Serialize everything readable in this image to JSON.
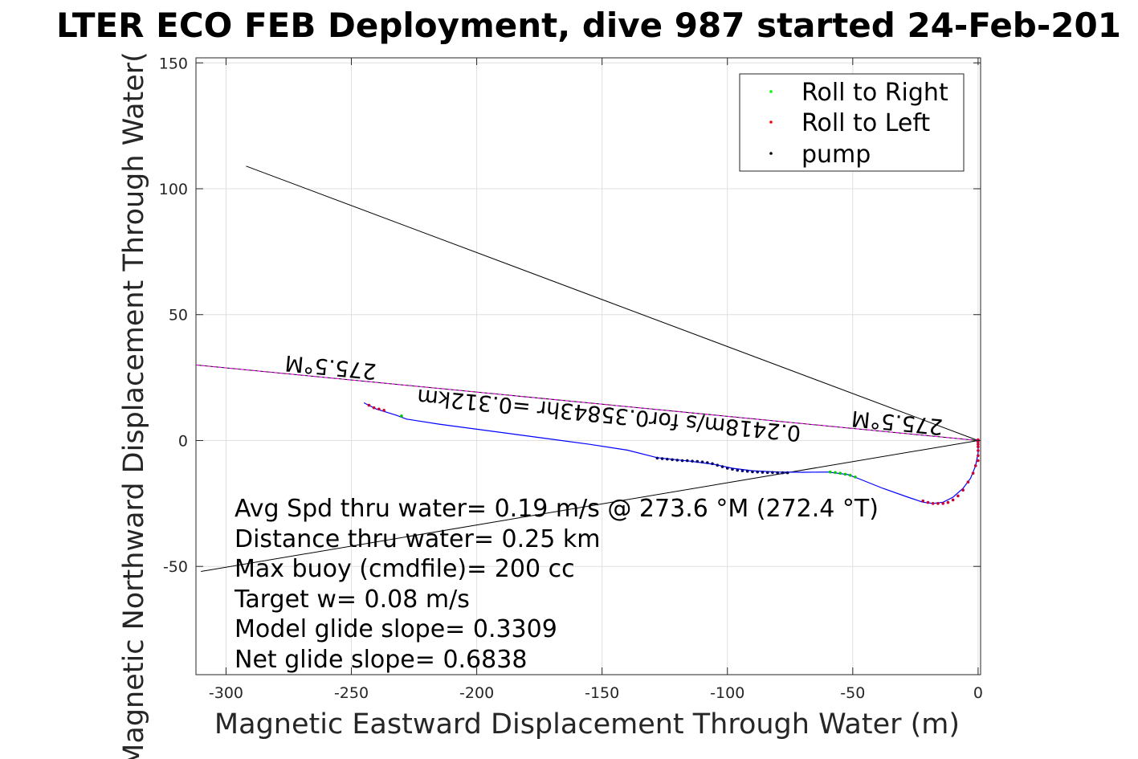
{
  "chart_data": {
    "type": "line",
    "title": "LTER ECO FEB Deployment, dive 987 started 24-Feb-201",
    "xlabel": "Magnetic Eastward Displacement Through Water (m)",
    "ylabel": "Magnetic Northward Displacement Through Water(",
    "xlim": [
      -312,
      1
    ],
    "ylim": [
      -93,
      152
    ],
    "xticks": [
      -300,
      -250,
      -200,
      -150,
      -100,
      -50,
      0
    ],
    "yticks": [
      -50,
      0,
      50,
      100,
      150
    ],
    "xtick_labels": [
      "-300",
      "-250",
      "-200",
      "-150",
      "-100",
      "-50",
      "0"
    ],
    "ytick_labels": [
      "-50",
      "0",
      "50",
      "100",
      "150"
    ],
    "grid": true,
    "legend_position": "top-right",
    "legend": [
      {
        "label": "Roll to Right",
        "color": "#00ff00"
      },
      {
        "label": "Roll to Left",
        "color": "#ff0000"
      },
      {
        "label": "pump",
        "color": "#000000"
      }
    ],
    "series": {
      "track": {
        "color": "#0000ff",
        "x": [
          -245,
          -240,
          -232,
          -228,
          -215,
          -200,
          -185,
          -170,
          -155,
          -140,
          -128,
          -115,
          -105,
          -98,
          -90,
          -80,
          -70,
          -60,
          -52,
          -48,
          -38,
          -28,
          -22,
          -18,
          -14,
          -10,
          -6,
          -3,
          -1,
          0,
          0,
          -0.5
        ],
        "y": [
          15,
          12.5,
          10,
          8.5,
          6.5,
          4.5,
          2.5,
          0.5,
          -1.5,
          -3.8,
          -6.8,
          -8.2,
          -9.5,
          -11,
          -12,
          -12.5,
          -12.6,
          -12.5,
          -13.5,
          -15,
          -19,
          -22.5,
          -24.5,
          -25,
          -24.5,
          -22.5,
          -19,
          -15,
          -10,
          -5,
          -2,
          0
        ]
      },
      "roll_to_right": {
        "color": "#00cc00",
        "x": [
          -230,
          -59,
          -57,
          -55,
          -53,
          -51,
          -49
        ],
        "y": [
          9.8,
          -12.5,
          -12.7,
          -13,
          -13.4,
          -13.8,
          -14.5
        ]
      },
      "roll_to_left": {
        "color": "#cc0033",
        "x": [
          -243,
          -241,
          -239,
          -237,
          -22,
          -20,
          -18,
          -16,
          -14,
          -12,
          -10,
          -8,
          -6,
          -4,
          -2,
          -1,
          0,
          0,
          0,
          0,
          0,
          0,
          0,
          0
        ],
        "y": [
          14,
          13,
          12.5,
          12,
          -24,
          -24.6,
          -25,
          -25,
          -25,
          -24.6,
          -23.6,
          -22,
          -19.7,
          -16.5,
          -13,
          -10,
          -8,
          -6,
          -4,
          -2.5,
          -1.5,
          -0.5,
          0,
          0.3
        ]
      },
      "pump": {
        "color": "#000066",
        "x": [
          -128,
          -126,
          -124,
          -122,
          -120,
          -118,
          -116,
          -114,
          -112,
          -110,
          -108,
          -106,
          -104,
          -102,
          -100,
          -98,
          -96,
          -94,
          -92,
          -90,
          -88,
          -86,
          -84,
          -82,
          -80,
          -78,
          -76
        ],
        "y": [
          -7,
          -7.2,
          -7.4,
          -7.6,
          -7.8,
          -8,
          -8,
          -8.2,
          -8.3,
          -8.5,
          -8.8,
          -9.2,
          -9.8,
          -10.4,
          -11,
          -11.4,
          -11.8,
          -12,
          -12.2,
          -12.4,
          -12.5,
          -12.6,
          -12.7,
          -12.7,
          -12.8,
          -12.8,
          -12.8
        ]
      }
    },
    "reference_lines": [
      {
        "name": "line-to-upper-left",
        "color": "#000000",
        "x": [
          -292,
          0
        ],
        "y": [
          109,
          0
        ]
      },
      {
        "name": "line-to-lower-left",
        "color": "#000000",
        "x": [
          -310,
          0
        ],
        "y": [
          -52,
          0
        ]
      },
      {
        "name": "heading-line",
        "color": "#000000",
        "x": [
          -312,
          0
        ],
        "y": [
          30,
          0
        ]
      },
      {
        "name": "heading-line-overlay",
        "color": "#ff00ff",
        "x": [
          -312,
          0
        ],
        "y": [
          30,
          0
        ]
      }
    ],
    "annotations": [
      {
        "text": "275.5°M",
        "x": -258,
        "y": 32,
        "rotation": 185.5
      },
      {
        "text": "275.5°M",
        "x": -32,
        "y": 10,
        "rotation": 185.5
      },
      {
        "text": "0.2418m/s for0.35843hr =0.312km",
        "x": -147,
        "y": 13,
        "rotation": 185.5
      }
    ],
    "stats": [
      "Avg Spd thru water=  0.19 m/s @ 273.6 °M (272.4 °T)",
      "Distance thru water=  0.25 km",
      "Max buoy (cmdfile)= 200 cc",
      "Target w= 0.08 m/s",
      "Model glide slope= 0.3309",
      "Net glide slope= 0.6838"
    ]
  }
}
